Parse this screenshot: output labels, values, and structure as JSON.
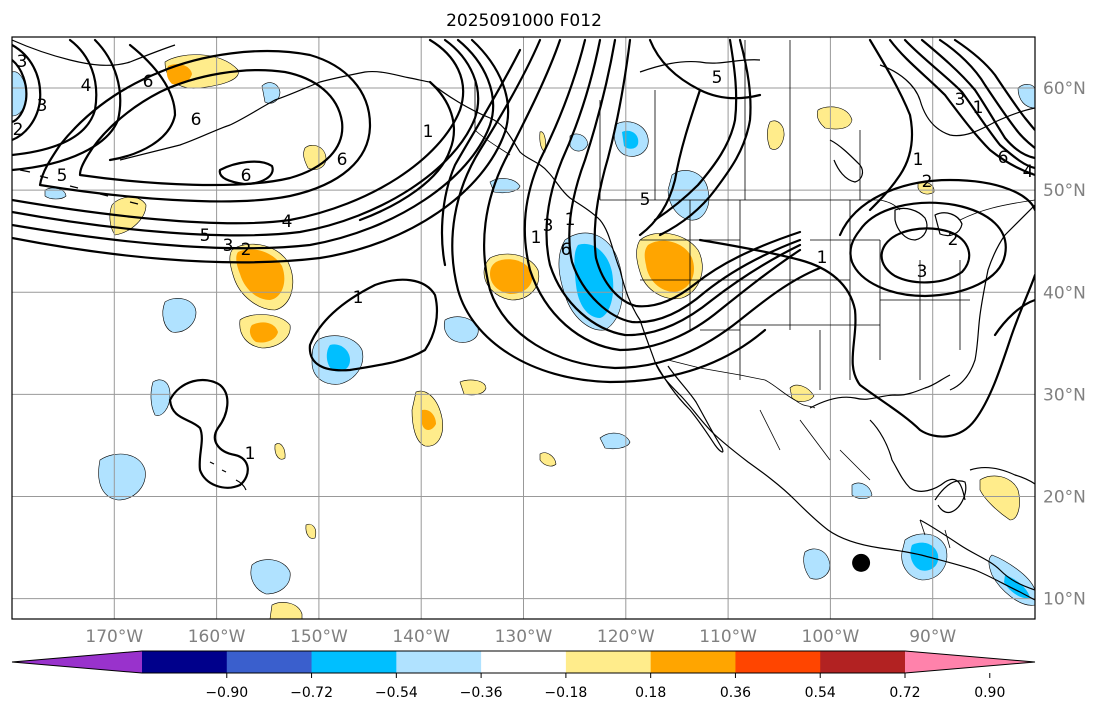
{
  "title": "2025091000 F012",
  "lat_labels": [
    {
      "value": 60,
      "text": "60°N"
    },
    {
      "value": 50,
      "text": "50°N"
    },
    {
      "value": 40,
      "text": "40°N"
    },
    {
      "value": 30,
      "text": "30°N"
    },
    {
      "value": 20,
      "text": "20°N"
    },
    {
      "value": 10,
      "text": "10°N"
    }
  ],
  "lon_labels": [
    {
      "value": -170,
      "text": "170°W"
    },
    {
      "value": -160,
      "text": "160°W"
    },
    {
      "value": -150,
      "text": "150°W"
    },
    {
      "value": -140,
      "text": "140°W"
    },
    {
      "value": -130,
      "text": "130°W"
    },
    {
      "value": -120,
      "text": "120°W"
    },
    {
      "value": -110,
      "text": "110°W"
    },
    {
      "value": -100,
      "text": "100°W"
    },
    {
      "value": -90,
      "text": "90°W"
    }
  ],
  "extent": {
    "lon_min": -180,
    "lon_max": -80,
    "lat_min": 8,
    "lat_max": 65
  },
  "colorbar": {
    "colors": [
      "#9932cc",
      "#00008b",
      "#3a5fcd",
      "#00bfff",
      "#b0e2ff",
      "#ffffff",
      "#ffec8b",
      "#ffa500",
      "#ff4500",
      "#b22222",
      "#ff82ab"
    ],
    "labels": [
      "−0.90",
      "−0.72",
      "−0.54",
      "−0.36",
      "−0.18",
      "0.18",
      "0.36",
      "0.54",
      "0.72",
      "0.90"
    ]
  },
  "contour_labels": [
    "3",
    "4",
    "5",
    "6",
    "6",
    "1",
    "6",
    "5",
    "3",
    "2",
    "4",
    "1",
    "1",
    "2",
    "6",
    "3",
    "1",
    "6",
    "5",
    "1",
    "1",
    "2",
    "3",
    "3",
    "1",
    "6",
    "4",
    "3",
    "2",
    "1",
    "5"
  ],
  "marker": {
    "lon": -97,
    "lat": 13.5,
    "color": "#000000"
  }
}
